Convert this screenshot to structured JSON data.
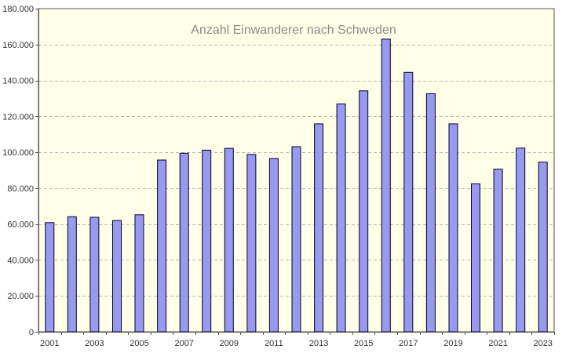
{
  "chart_data": {
    "type": "bar",
    "title": "Anzahl Einwanderer nach Schweden",
    "xlabel": "",
    "ylabel": "",
    "categories": [
      "2001",
      "2002",
      "2003",
      "2004",
      "2005",
      "2006",
      "2007",
      "2008",
      "2009",
      "2010",
      "2011",
      "2012",
      "2013",
      "2014",
      "2015",
      "2016",
      "2017",
      "2018",
      "2019",
      "2020",
      "2021",
      "2022",
      "2023"
    ],
    "x_tick_labels": [
      "2001",
      "",
      "2003",
      "",
      "2005",
      "",
      "2007",
      "",
      "2009",
      "",
      "2011",
      "",
      "2013",
      "",
      "2015",
      "",
      "2017",
      "",
      "2019",
      "",
      "2021",
      "",
      "2023"
    ],
    "values": [
      60800,
      64100,
      63800,
      62000,
      65200,
      95700,
      99500,
      101200,
      102200,
      98800,
      96500,
      103100,
      115800,
      126900,
      134200,
      163000,
      144500,
      132600,
      115800,
      82500,
      90600,
      102300,
      94500
    ],
    "ylim": [
      0,
      180000
    ],
    "y_ticks": [
      0,
      20000,
      40000,
      60000,
      80000,
      100000,
      120000,
      140000,
      160000,
      180000
    ],
    "y_tick_labels": [
      "0",
      "20.000",
      "40.000",
      "60.000",
      "80.000",
      "100.000",
      "120.000",
      "140.000",
      "160.000",
      "180.000"
    ],
    "grid": true,
    "legend": "none",
    "colors": {
      "bar_fill": "#9999ee",
      "bar_stroke": "#000033",
      "plot_background": "#ffffe8",
      "grid": "#b8b8b8",
      "axis": "#555555",
      "title": "#8a8a8a"
    }
  }
}
